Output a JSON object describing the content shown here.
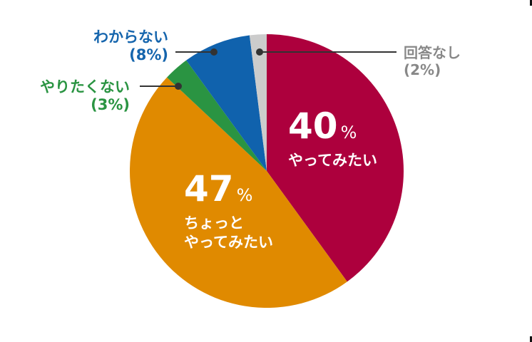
{
  "chart_data": {
    "type": "pie",
    "title": "",
    "start_angle": "12 o'clock, clockwise",
    "slices": [
      {
        "label": "やってみたい",
        "value": 40,
        "color": "#ad003d"
      },
      {
        "label": "ちょっとやってみたい",
        "value": 47,
        "color": "#e08a00"
      },
      {
        "label": "やりたくない",
        "value": 3,
        "color": "#2a9442"
      },
      {
        "label": "わからない",
        "value": 8,
        "color": "#1062ad"
      },
      {
        "label": "回答なし",
        "value": 2,
        "color": "#cccccc"
      }
    ]
  },
  "labels": {
    "red": {
      "value": "40",
      "unit": "%",
      "text": "やってみたい"
    },
    "orange": {
      "value": "47",
      "unit": "%",
      "line1": "ちょっと",
      "line2": "やってみたい"
    },
    "blue": {
      "name": "わからない",
      "pct": "(8%)"
    },
    "green": {
      "name": "やりたくない",
      "pct": "(3%)"
    },
    "gray": {
      "name": "回答なし",
      "pct": "(2%)"
    }
  }
}
